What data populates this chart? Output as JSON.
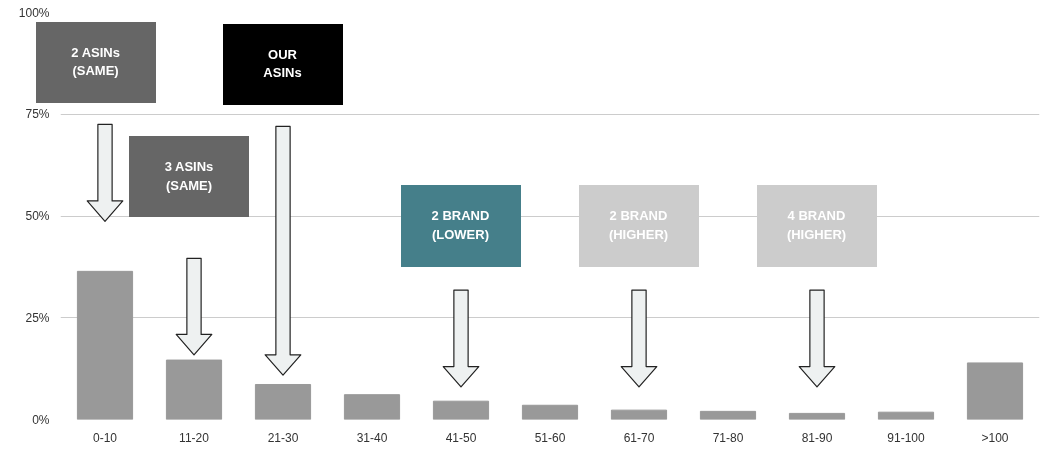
{
  "chart_data": {
    "type": "bar",
    "categories": [
      "0-10",
      "11-20",
      "21-30",
      "31-40",
      "41-50",
      "51-60",
      "61-70",
      "71-80",
      "81-90",
      "91-100",
      ">100"
    ],
    "values": [
      36.4,
      14.6,
      8.6,
      6.1,
      4.5,
      3.5,
      2.3,
      2.0,
      1.5,
      1.8,
      13.9
    ],
    "color": "#999999",
    "ylim": [
      0,
      100
    ],
    "yticks": [
      {
        "value": 0,
        "label": "0%"
      },
      {
        "value": 25,
        "label": "25%"
      },
      {
        "value": 50,
        "label": "50%"
      },
      {
        "value": 75,
        "label": "75%"
      },
      {
        "value": 100,
        "label": "100%"
      }
    ],
    "grid": "y",
    "annotations": [
      "2 ASINs\n(SAME)",
      "3 ASINs\n(SAME)",
      "OUR\nASINs",
      "2 BRAND\n(LOWER)",
      "2 BRAND\n(HIGHER)",
      "4 BRAND\n(HIGHER)"
    ]
  }
}
